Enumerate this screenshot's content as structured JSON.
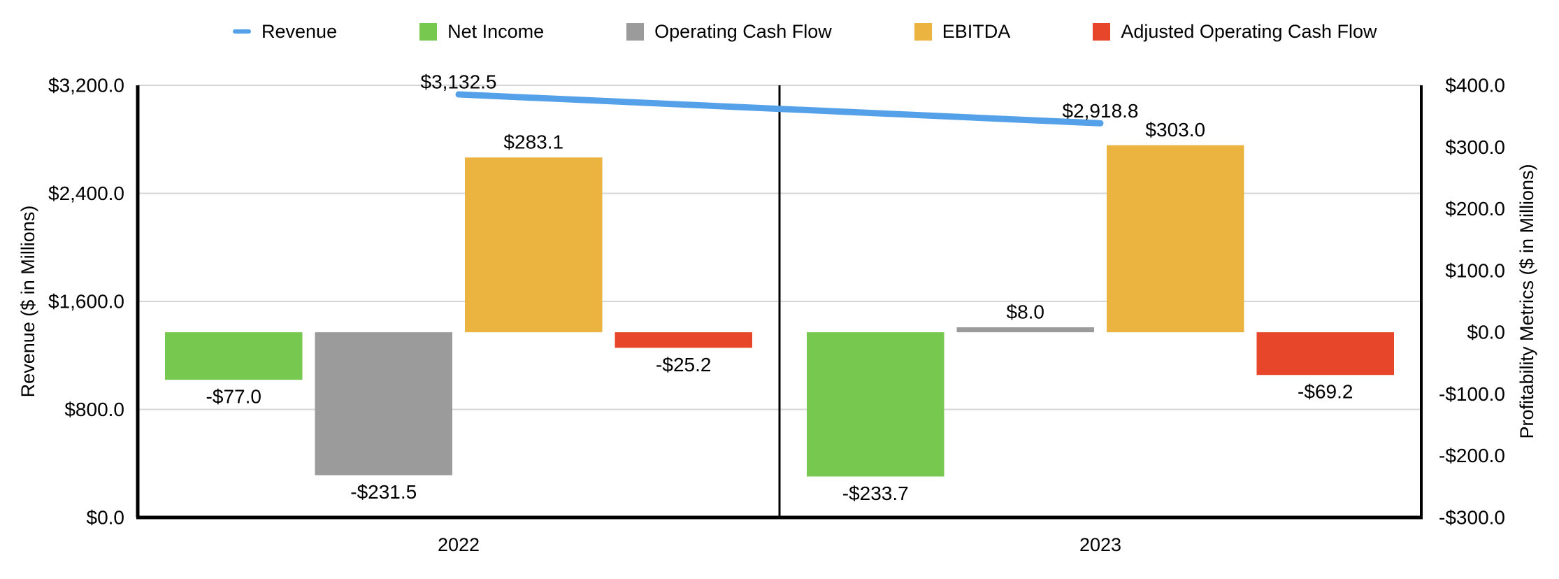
{
  "legend": {
    "items": [
      {
        "label": "Revenue",
        "swatch": "line",
        "color": "#55A1E9"
      },
      {
        "label": "Net Income",
        "swatch": "square",
        "color": "#77C84E"
      },
      {
        "label": "Operating Cash Flow",
        "swatch": "square",
        "color": "#9B9B9B"
      },
      {
        "label": "EBITDA",
        "swatch": "square",
        "color": "#EBB440"
      },
      {
        "label": "Adjusted Operating Cash Flow",
        "swatch": "square",
        "color": "#E8462B"
      }
    ]
  },
  "chart_data": {
    "type": "combo",
    "categories": [
      "2022",
      "2023"
    ],
    "line_series": [
      {
        "name": "Revenue",
        "axis": "left",
        "color": "#55A1E9",
        "values": [
          3132.5,
          2918.8
        ],
        "labels": [
          "$3,132.5",
          "$2,918.8"
        ]
      }
    ],
    "bar_series": [
      {
        "name": "Net Income",
        "axis": "right",
        "color": "#77C84E",
        "values": [
          -77.0,
          -233.7
        ],
        "labels": [
          "-$77.0",
          "-$233.7"
        ]
      },
      {
        "name": "Operating Cash Flow",
        "axis": "right",
        "color": "#9B9B9B",
        "values": [
          -231.5,
          8.0
        ],
        "labels": [
          "-$231.5",
          "$8.0"
        ]
      },
      {
        "name": "EBITDA",
        "axis": "right",
        "color": "#EBB440",
        "values": [
          283.1,
          303.0
        ],
        "labels": [
          "$283.1",
          "$303.0"
        ]
      },
      {
        "name": "Adjusted Operating Cash Flow",
        "axis": "right",
        "color": "#E8462B",
        "values": [
          -25.2,
          -69.2
        ],
        "labels": [
          "-$25.2",
          "-$69.2"
        ]
      }
    ],
    "left_axis": {
      "title": "Revenue ($ in Millions)",
      "min": 0,
      "max": 3200,
      "tick_step": 800,
      "tick_labels": [
        "$0.0",
        "$800.0",
        "$1,600.0",
        "$2,400.0",
        "$3,200.0"
      ]
    },
    "right_axis": {
      "title": "Profitability Metrics ($ in Millions)",
      "min": -300,
      "max": 400,
      "tick_step": 100,
      "tick_labels": [
        "-$300.0",
        "-$200.0",
        "-$100.0",
        "$0.0",
        "$100.0",
        "$200.0",
        "$300.0",
        "$400.0"
      ]
    },
    "grid": "horizontal-from-left-axis",
    "legend_position": "top",
    "colors": {
      "gridline": "#D6D6D6",
      "axis_line": "#000000",
      "text": "#000000",
      "background": "#FFFFFF"
    }
  }
}
